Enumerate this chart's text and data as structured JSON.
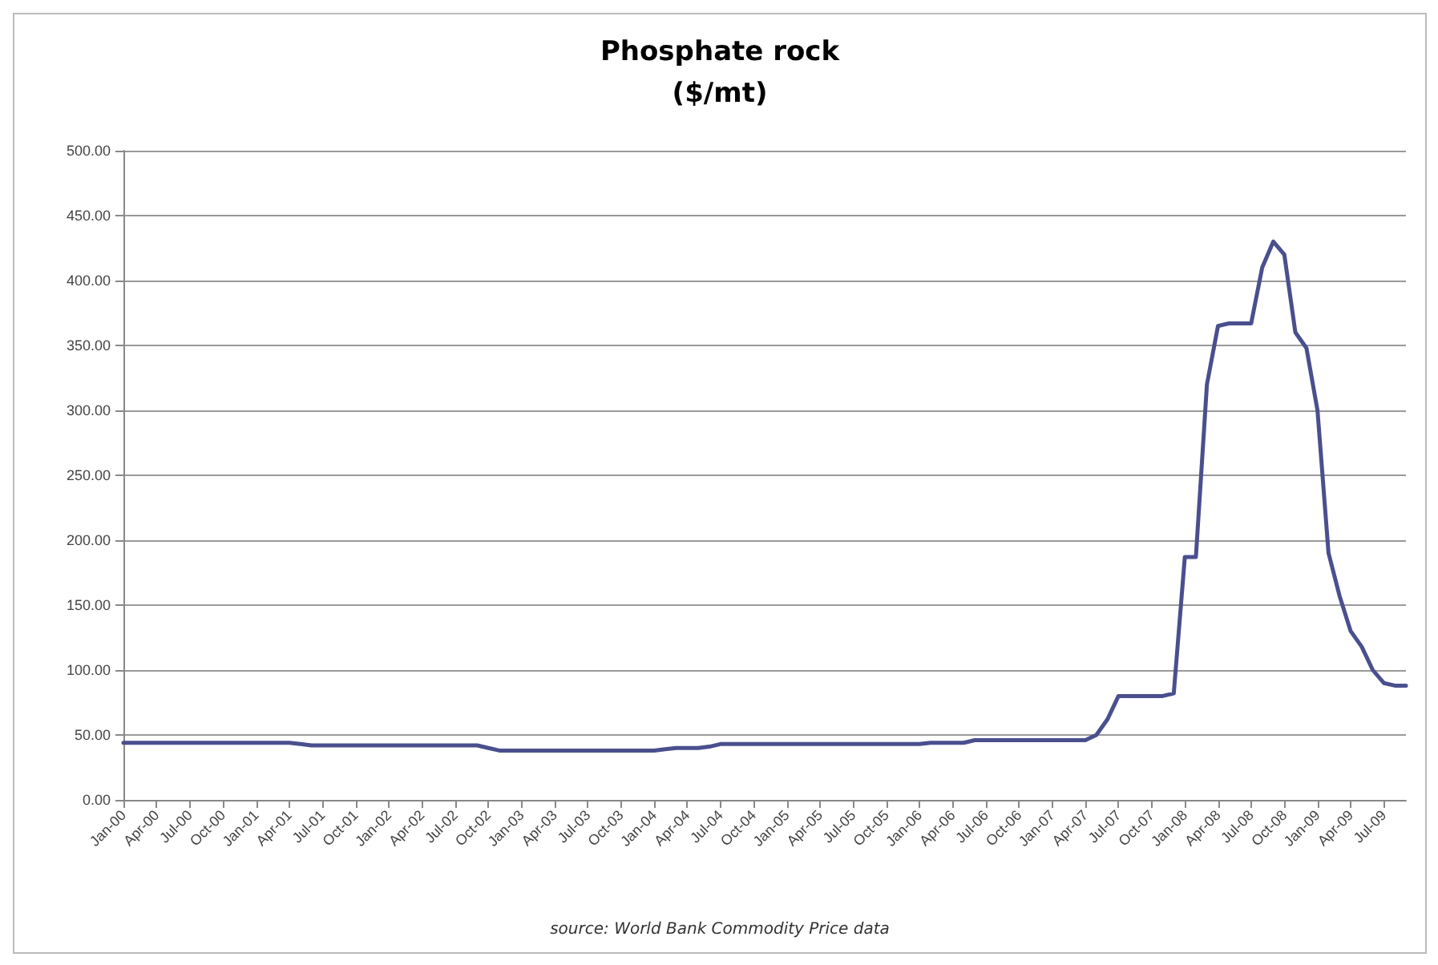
{
  "chart_data": {
    "type": "line",
    "title": "Phosphate rock",
    "subtitle": "($/mt)",
    "categories": [
      "Jan-00",
      null,
      null,
      "Apr-00",
      null,
      null,
      "Jul-00",
      null,
      null,
      "Oct-00",
      null,
      null,
      "Jan-01",
      null,
      null,
      "Apr-01",
      null,
      null,
      "Jul-01",
      null,
      null,
      "Oct-01",
      null,
      null,
      "Jan-02",
      null,
      null,
      "Apr-02",
      null,
      null,
      "Jul-02",
      null,
      null,
      "Oct-02",
      null,
      null,
      "Jan-03",
      null,
      null,
      "Apr-03",
      null,
      null,
      "Jul-03",
      null,
      null,
      "Oct-03",
      null,
      null,
      "Jan-04",
      null,
      null,
      "Apr-04",
      null,
      null,
      "Jul-04",
      null,
      null,
      "Oct-04",
      null,
      null,
      "Jan-05",
      null,
      null,
      "Apr-05",
      null,
      null,
      "Jul-05",
      null,
      null,
      "Oct-05",
      null,
      null,
      "Jan-06",
      null,
      null,
      "Apr-06",
      null,
      null,
      "Jul-06",
      null,
      null,
      "Oct-06",
      null,
      null,
      "Jan-07",
      null,
      null,
      "Apr-07",
      null,
      null,
      "Jul-07",
      null,
      null,
      "Oct-07",
      null,
      null,
      "Jan-08",
      null,
      null,
      "Apr-08",
      null,
      null,
      "Jul-08",
      null,
      null,
      "Oct-08",
      null,
      null,
      "Jan-09",
      null,
      null,
      "Apr-09",
      null,
      null,
      "Jul-09",
      null,
      null
    ],
    "series": [
      {
        "color": "#4a4f8e",
        "values": [
          44,
          44,
          44,
          44,
          44,
          44,
          44,
          44,
          44,
          44,
          44,
          44,
          44,
          44,
          44,
          44,
          43,
          42,
          42,
          42,
          42,
          42,
          42,
          42,
          42,
          42,
          42,
          42,
          42,
          42,
          42,
          42,
          42,
          40,
          38,
          38,
          38,
          38,
          38,
          38,
          38,
          38,
          38,
          38,
          38,
          38,
          38,
          38,
          38,
          39,
          40,
          40,
          40,
          41,
          43,
          43,
          43,
          43,
          43,
          43,
          43,
          43,
          43,
          43,
          43,
          43,
          43,
          43,
          43,
          43,
          43,
          43,
          43,
          44,
          44,
          44,
          44,
          46,
          46,
          46,
          46,
          46,
          46,
          46,
          46,
          46,
          46,
          46,
          50,
          62,
          80,
          80,
          80,
          80,
          80,
          82,
          187,
          187,
          320,
          365,
          367,
          367,
          367,
          410,
          430,
          420,
          360,
          348,
          300,
          190,
          157,
          130,
          118,
          100,
          90,
          88,
          88
        ]
      }
    ],
    "ylim": [
      0,
      500
    ],
    "yticks": [
      {
        "value": 0,
        "label": "0.00"
      },
      {
        "value": 50,
        "label": "50.00"
      },
      {
        "value": 100,
        "label": "100.00"
      },
      {
        "value": 150,
        "label": "150.00"
      },
      {
        "value": 200,
        "label": "200.00"
      },
      {
        "value": 250,
        "label": "250.00"
      },
      {
        "value": 300,
        "label": "300.00"
      },
      {
        "value": 350,
        "label": "350.00"
      },
      {
        "value": 400,
        "label": "400.00"
      },
      {
        "value": 450,
        "label": "450.00"
      },
      {
        "value": 500,
        "label": "500.00"
      }
    ],
    "grid": "y",
    "marker": "none",
    "line_style": "solid",
    "annotations": [
      "source: World Bank Commodity Price data"
    ]
  }
}
